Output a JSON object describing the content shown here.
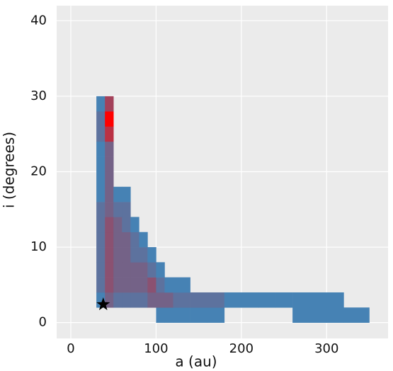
{
  "chart_data": {
    "type": "hist2d",
    "xlabel": "a (au)",
    "ylabel": "i (degrees)",
    "xbins": [
      30,
      40,
      50,
      60,
      70,
      80,
      90,
      100,
      110,
      120,
      140,
      160,
      180,
      200,
      220,
      240,
      260,
      280,
      300,
      320,
      350
    ],
    "ybins": [
      0,
      2,
      4,
      6,
      8,
      10,
      12,
      14,
      16,
      18,
      20,
      22,
      24,
      26,
      28,
      30
    ],
    "counts": [
      [
        0,
        0,
        0,
        0,
        0,
        0,
        0,
        1,
        1,
        1,
        1,
        1,
        0,
        0,
        0,
        0,
        1,
        1,
        1,
        1
      ],
      [
        1,
        3,
        2,
        2,
        2,
        2,
        3,
        3,
        3,
        2,
        2,
        2,
        1,
        1,
        1,
        1,
        1,
        1,
        1,
        0
      ],
      [
        2,
        4,
        3,
        3,
        3,
        3,
        4,
        2,
        1,
        1,
        0,
        0,
        0,
        0,
        0,
        0,
        0,
        0,
        0,
        0
      ],
      [
        2,
        4,
        3,
        3,
        3,
        3,
        2,
        1,
        0,
        0,
        0,
        0,
        0,
        0,
        0,
        0,
        0,
        0,
        0,
        0
      ],
      [
        2,
        4,
        3,
        3,
        2,
        2,
        1,
        0,
        0,
        0,
        0,
        0,
        0,
        0,
        0,
        0,
        0,
        0,
        0,
        0
      ],
      [
        2,
        4,
        3,
        3,
        2,
        1,
        0,
        0,
        0,
        0,
        0,
        0,
        0,
        0,
        0,
        0,
        0,
        0,
        0,
        0
      ],
      [
        2,
        4,
        3,
        2,
        1,
        0,
        0,
        0,
        0,
        0,
        0,
        0,
        0,
        0,
        0,
        0,
        0,
        0,
        0,
        0
      ],
      [
        2,
        3,
        2,
        2,
        0,
        0,
        0,
        0,
        0,
        0,
        0,
        0,
        0,
        0,
        0,
        0,
        0,
        0,
        0,
        0
      ],
      [
        1,
        3,
        1,
        1,
        0,
        0,
        0,
        0,
        0,
        0,
        0,
        0,
        0,
        0,
        0,
        0,
        0,
        0,
        0,
        0
      ],
      [
        1,
        3,
        0,
        0,
        0,
        0,
        0,
        0,
        0,
        0,
        0,
        0,
        0,
        0,
        0,
        0,
        0,
        0,
        0,
        0
      ],
      [
        1,
        3,
        0,
        0,
        0,
        0,
        0,
        0,
        0,
        0,
        0,
        0,
        0,
        0,
        0,
        0,
        0,
        0,
        0,
        0
      ],
      [
        1,
        3,
        0,
        0,
        0,
        0,
        0,
        0,
        0,
        0,
        0,
        0,
        0,
        0,
        0,
        0,
        0,
        0,
        0,
        0
      ],
      [
        2,
        6,
        0,
        0,
        0,
        0,
        0,
        0,
        0,
        0,
        0,
        0,
        0,
        0,
        0,
        0,
        0,
        0,
        0,
        0
      ],
      [
        2,
        9,
        0,
        0,
        0,
        0,
        0,
        0,
        0,
        0,
        0,
        0,
        0,
        0,
        0,
        0,
        0,
        0,
        0,
        0
      ],
      [
        1,
        5,
        0,
        0,
        0,
        0,
        0,
        0,
        0,
        0,
        0,
        0,
        0,
        0,
        0,
        0,
        0,
        0,
        0,
        0
      ]
    ],
    "colors": [
      "#4682b4",
      "#ff0000"
    ],
    "marker": {
      "x": 38,
      "y": 2.4,
      "color": "#000000"
    },
    "xlim": [
      -16.6,
      372
    ],
    "ylim": [
      -2.1,
      42
    ],
    "xticks": [
      0,
      100,
      200,
      300
    ],
    "yticks": [
      0,
      10,
      20,
      30,
      40
    ],
    "grid": true
  }
}
